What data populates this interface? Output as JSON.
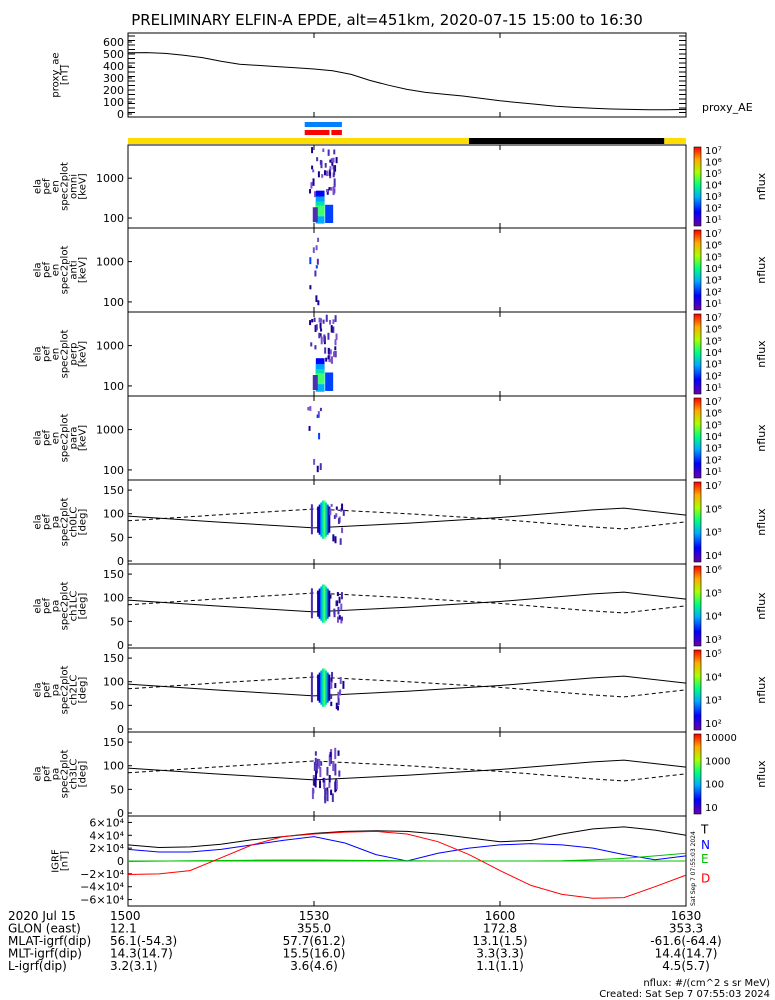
{
  "title": "PRELIMINARY ELFIN-A EPDE, alt=451km, 2020-07-15 15:00 to 16:30",
  "time_axis": {
    "start_min": 0,
    "end_min": 90,
    "tick_minutes": [
      0,
      30,
      60,
      90
    ],
    "tick_labels": [
      "1500",
      "1530",
      "1600",
      "1630"
    ]
  },
  "colors": {
    "B_T": "#000000",
    "B_N": "#0000ff",
    "B_E": "#00c000",
    "B_D": "#ff0000",
    "sunlit": "#ffdd00",
    "shadow": "#000000",
    "mode_blue": "#0080ff",
    "mode_red": "#ff0000"
  },
  "bars": {
    "mode_top": [
      [
        28.5,
        34.5
      ]
    ],
    "mode_bottom": [
      [
        28.5,
        32.5
      ],
      [
        32.8,
        34.5
      ]
    ],
    "sunlight": [
      {
        "from": 0,
        "to": 55,
        "state": "sunlit"
      },
      {
        "from": 55,
        "to": 86.5,
        "state": "shadow"
      },
      {
        "from": 86.5,
        "to": 90,
        "state": "sunlit"
      }
    ]
  },
  "panels": [
    {
      "type": "line",
      "ylabel": [
        "proxy_ae",
        "[nT]"
      ],
      "yticks": [
        "600",
        "500",
        "400",
        "300",
        "200",
        "100",
        "0"
      ],
      "ymin": 0,
      "ymax": 650,
      "right_label": "proxy_AE"
    },
    {
      "type": "spec_en",
      "ylabel": [
        "ela",
        "pef",
        "en",
        "spec2plot",
        "omni",
        "[keV]"
      ],
      "yticks": [
        "1000",
        "100"
      ],
      "cbar": [
        "10⁷",
        "10⁶",
        "10⁵",
        "10⁴",
        "10³",
        "10²",
        "10¹"
      ],
      "cbar_label": "nflux"
    },
    {
      "type": "spec_en",
      "ylabel": [
        "ela",
        "pef",
        "en",
        "spec2plot",
        "anti",
        "[keV]"
      ],
      "yticks": [
        "1000",
        "100"
      ],
      "cbar": [
        "10⁷",
        "10⁶",
        "10⁵",
        "10⁴",
        "10³",
        "10²",
        "10¹"
      ],
      "cbar_label": "nflux"
    },
    {
      "type": "spec_en",
      "ylabel": [
        "ela",
        "pef",
        "en",
        "spec2plot",
        "perp",
        "[keV]"
      ],
      "yticks": [
        "1000",
        "100"
      ],
      "cbar": [
        "10⁷",
        "10⁶",
        "10⁵",
        "10⁴",
        "10³",
        "10²",
        "10¹"
      ],
      "cbar_label": "nflux"
    },
    {
      "type": "spec_en",
      "ylabel": [
        "ela",
        "pef",
        "en",
        "spec2plot",
        "para",
        "[keV]"
      ],
      "yticks": [
        "1000",
        "100"
      ],
      "cbar": [
        "10⁷",
        "10⁶",
        "10⁵",
        "10⁴",
        "10³",
        "10²",
        "10¹"
      ],
      "cbar_label": "nflux"
    },
    {
      "type": "spec_pa",
      "ylabel": [
        "ela",
        "pef",
        "pa",
        "spec2plot",
        "ch0LC",
        "[deg]"
      ],
      "yticks": [
        "150",
        "100",
        "50",
        "0"
      ],
      "cbar": [
        "10⁷",
        "10⁶",
        "10⁵",
        "10⁴"
      ],
      "cbar_label": "nflux"
    },
    {
      "type": "spec_pa",
      "ylabel": [
        "ela",
        "pef",
        "pa",
        "spec2plot",
        "ch1LC",
        "[deg]"
      ],
      "yticks": [
        "150",
        "100",
        "50",
        "0"
      ],
      "cbar": [
        "10⁶",
        "10⁵",
        "10⁴",
        "10³"
      ],
      "cbar_label": "nflux"
    },
    {
      "type": "spec_pa",
      "ylabel": [
        "ela",
        "pef",
        "pa",
        "spec2plot",
        "ch2LC",
        "[deg]"
      ],
      "yticks": [
        "150",
        "100",
        "50",
        "0"
      ],
      "cbar": [
        "10⁵",
        "10⁴",
        "10³",
        "10²"
      ],
      "cbar_label": "nflux"
    },
    {
      "type": "spec_pa",
      "ylabel": [
        "ela",
        "pef",
        "pa",
        "spec2plot",
        "ch3LC",
        "[deg]"
      ],
      "yticks": [
        "150",
        "100",
        "50",
        "0"
      ],
      "cbar": [
        "10000",
        "1000",
        "100",
        "10"
      ],
      "cbar_label": "nflux"
    },
    {
      "type": "igrf",
      "ylabel": [
        "IGRF",
        "[nT]"
      ],
      "yticks": [
        "6×10⁴",
        "4×10⁴",
        "2×10⁴",
        "0",
        "−2×10⁴",
        "−4×10⁴",
        "−6×10⁴"
      ],
      "components": [
        "T",
        "N",
        "E",
        "D"
      ],
      "side_note": "Sat Sep  7 07:55:03 2024"
    }
  ],
  "chart_data": {
    "type": "line",
    "title": "PRELIMINARY ELFIN-A EPDE, alt=451km, 2020-07-15 15:00 to 16:30",
    "x_units": "minutes after 2020-07-15 15:00",
    "ae": {
      "name": "proxy_AE",
      "x": [
        0,
        3,
        6,
        9,
        12,
        15,
        18,
        21,
        24,
        27,
        30,
        33,
        36,
        39,
        42,
        45,
        48,
        51,
        54,
        57,
        60,
        63,
        66,
        69,
        72,
        75,
        78,
        81,
        84,
        87,
        90
      ],
      "y": [
        510,
        512,
        505,
        490,
        470,
        440,
        415,
        405,
        395,
        385,
        375,
        360,
        330,
        280,
        240,
        205,
        180,
        165,
        150,
        130,
        110,
        95,
        80,
        65,
        55,
        48,
        42,
        38,
        36,
        36,
        38
      ]
    },
    "pa_loss_cone_deg": {
      "x": [
        0,
        15,
        30,
        45,
        60,
        75,
        80,
        90
      ],
      "y": [
        95,
        82,
        70,
        80,
        92,
        108,
        112,
        97
      ]
    },
    "pa_antiloss_cone_deg": {
      "x": [
        0,
        15,
        30,
        45,
        60,
        75,
        80,
        90
      ],
      "y": [
        85,
        98,
        110,
        100,
        88,
        72,
        68,
        83
      ]
    },
    "igrf_nT": [
      {
        "name": "T",
        "x": [
          0,
          5,
          10,
          15,
          20,
          25,
          30,
          35,
          40,
          45,
          50,
          55,
          60,
          65,
          70,
          75,
          80,
          85,
          90
        ],
        "y": [
          25000,
          21000,
          22000,
          26000,
          33000,
          38000,
          43000,
          46000,
          47000,
          46000,
          42000,
          36000,
          30000,
          32000,
          42000,
          50000,
          53000,
          48000,
          40000
        ]
      },
      {
        "name": "N",
        "x": [
          0,
          5,
          10,
          15,
          20,
          25,
          30,
          35,
          40,
          45,
          50,
          55,
          60,
          65,
          70,
          75,
          80,
          85,
          90
        ],
        "y": [
          18000,
          14000,
          14000,
          18000,
          25000,
          32000,
          38000,
          28000,
          10000,
          0,
          12000,
          20000,
          25000,
          27000,
          25000,
          20000,
          10000,
          2000,
          8000
        ]
      },
      {
        "name": "E",
        "x": [
          0,
          5,
          10,
          15,
          20,
          25,
          30,
          35,
          40,
          45,
          50,
          55,
          60,
          65,
          70,
          75,
          80,
          85,
          90
        ],
        "y": [
          -800,
          -200,
          300,
          800,
          1200,
          1500,
          1500,
          1200,
          800,
          400,
          0,
          0,
          0,
          0,
          500,
          2000,
          4000,
          8000,
          12000
        ]
      },
      {
        "name": "D",
        "x": [
          0,
          5,
          10,
          15,
          20,
          25,
          30,
          35,
          40,
          45,
          50,
          55,
          60,
          65,
          70,
          75,
          80,
          85,
          90
        ],
        "y": [
          -21000,
          -20000,
          -15000,
          5000,
          25000,
          38000,
          42000,
          45000,
          46000,
          42000,
          30000,
          10000,
          -15000,
          -38000,
          -52000,
          -58000,
          -57000,
          -40000,
          -22000
        ]
      }
    ]
  },
  "ephemeris": {
    "rows": [
      {
        "label": "2020 Jul 15",
        "values": [
          "1500",
          "1530",
          "1600",
          "1630"
        ]
      },
      {
        "label": "GLON (east)",
        "values": [
          "12.1",
          "355.0",
          "172.8",
          "353.3"
        ]
      },
      {
        "label": "MLAT-igrf(dip)",
        "values": [
          "56.1(-54.3)",
          "57.7(61.2)",
          "13.1(1.5)",
          "-61.6(-64.4)"
        ]
      },
      {
        "label": "MLT-igrf(dip)",
        "values": [
          "14.3(14.7)",
          "15.5(16.0)",
          "3.3(3.3)",
          "14.4(14.7)"
        ]
      },
      {
        "label": "L-igrf(dip)",
        "values": [
          "3.2(3.1)",
          "3.6(4.6)",
          "1.1(1.1)",
          "4.5(5.7)"
        ]
      }
    ]
  },
  "footer": {
    "units": "nflux: #/(cm^2 s sr MeV)",
    "created": "Created: Sat Sep  7 07:55:03 2024"
  }
}
